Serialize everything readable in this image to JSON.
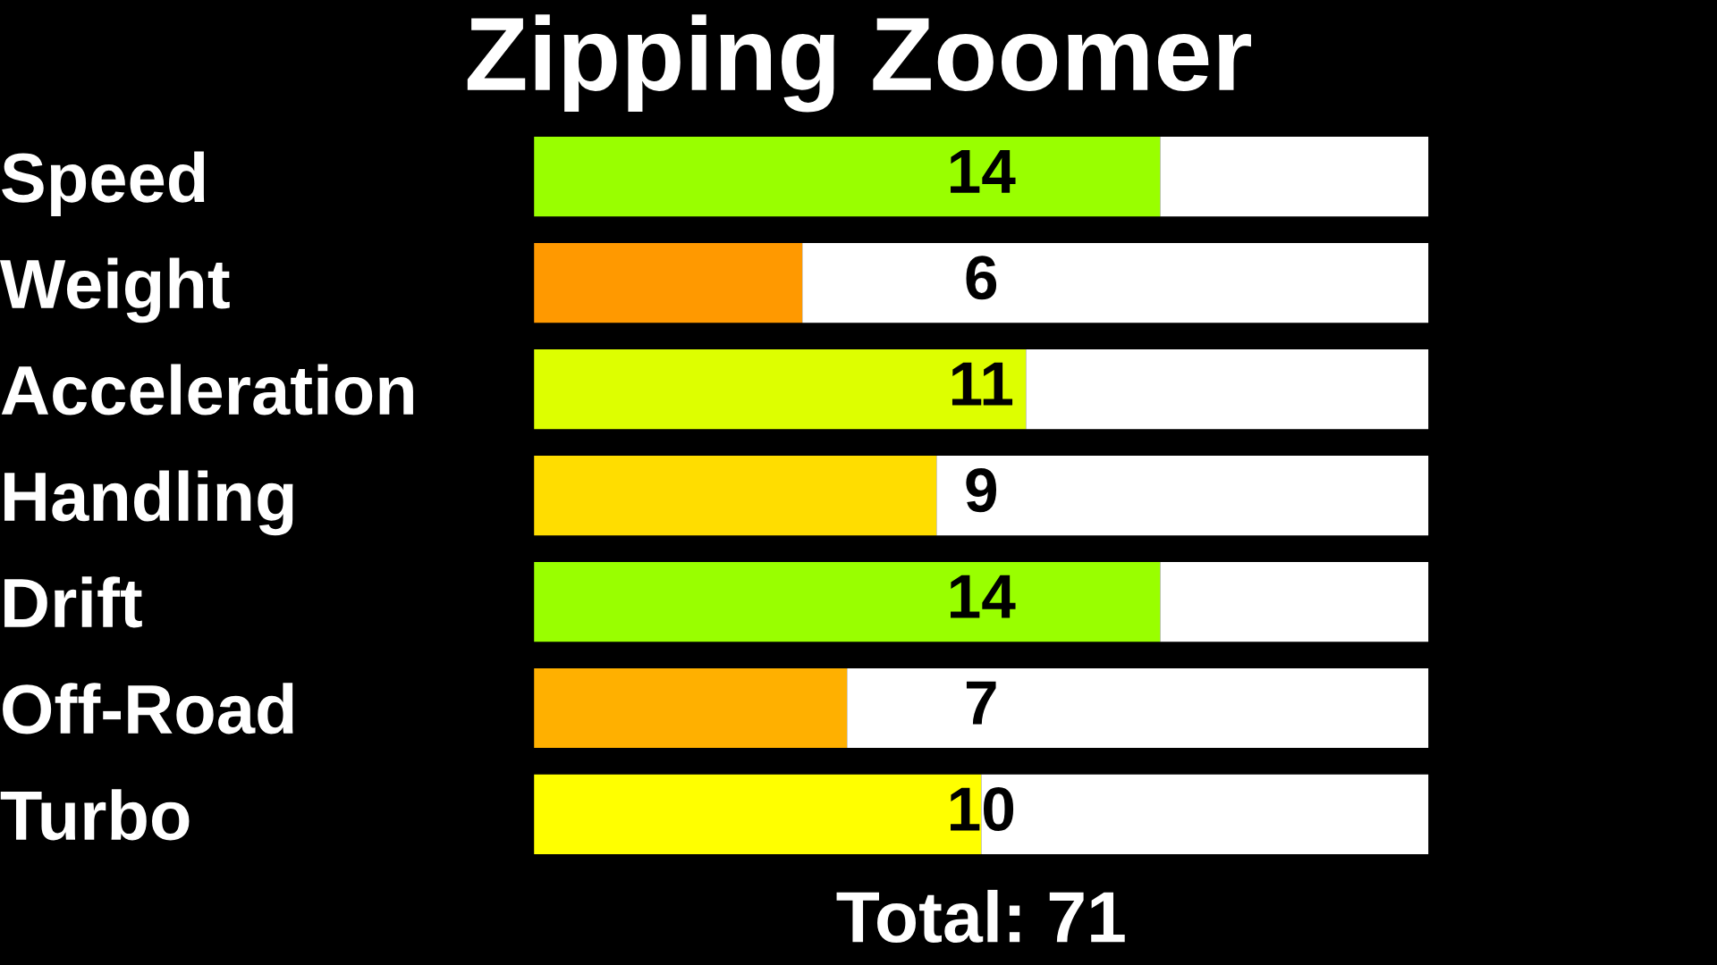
{
  "chart_data": {
    "type": "bar",
    "orientation": "horizontal",
    "stacked": true,
    "title": "Zipping Zoomer",
    "categories": [
      "Speed",
      "Weight",
      "Acceleration",
      "Handling",
      "Drift",
      "Off-Road",
      "Turbo"
    ],
    "series": [
      {
        "colors": [
          "#99ff00",
          "#ff9900",
          "#ddff00",
          "#ffdd00",
          "#99ff00",
          "#ffb000",
          "#ffff00"
        ],
        "values": [
          14,
          6,
          11,
          9,
          14,
          7,
          10
        ],
        "value_labels": [
          "14",
          "6",
          "11",
          "9",
          "14",
          "7",
          "10"
        ]
      },
      {
        "color": "#ffffff",
        "values": [
          6,
          14,
          9,
          11,
          6,
          13,
          10
        ]
      }
    ],
    "xlim": [
      0,
      20
    ],
    "tick_labels": "y",
    "grid": false,
    "legend": false,
    "annotations": [
      "Total: 71"
    ]
  }
}
